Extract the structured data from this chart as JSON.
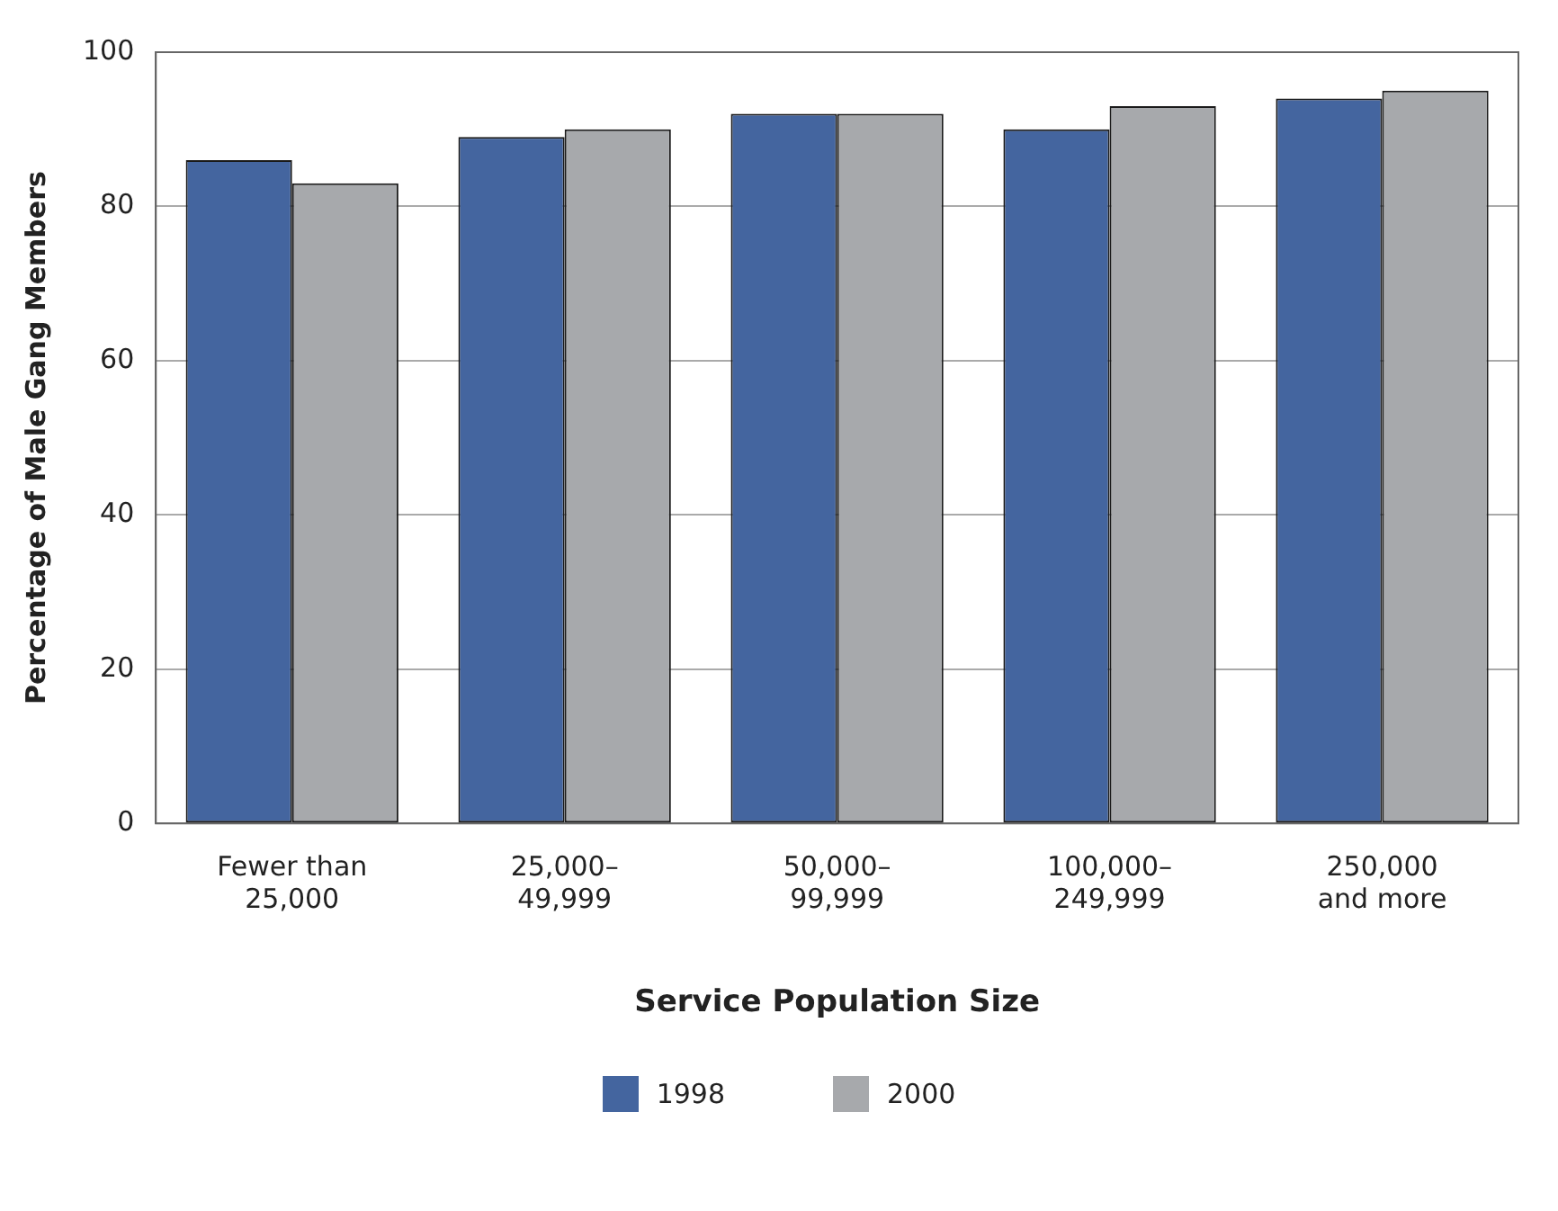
{
  "chart_data": {
    "type": "bar",
    "xlabel": "Service Population Size",
    "ylabel": "Percentage of Male Gang Members",
    "categories": [
      "Fewer than\n25,000",
      "25,000–\n49,999",
      "50,000–\n99,999",
      "100,000–\n249,999",
      "250,000\nand more"
    ],
    "series": [
      {
        "name": "1998",
        "color": "#44659f",
        "values": [
          86,
          89,
          92,
          90,
          94
        ]
      },
      {
        "name": "2000",
        "color": "#a7a9ac",
        "values": [
          83,
          90,
          92,
          93,
          95
        ]
      }
    ],
    "ylim": [
      0,
      100
    ],
    "yticks": [
      0,
      20,
      40,
      60,
      80,
      100
    ],
    "grid": "y",
    "legend": "bottom"
  }
}
